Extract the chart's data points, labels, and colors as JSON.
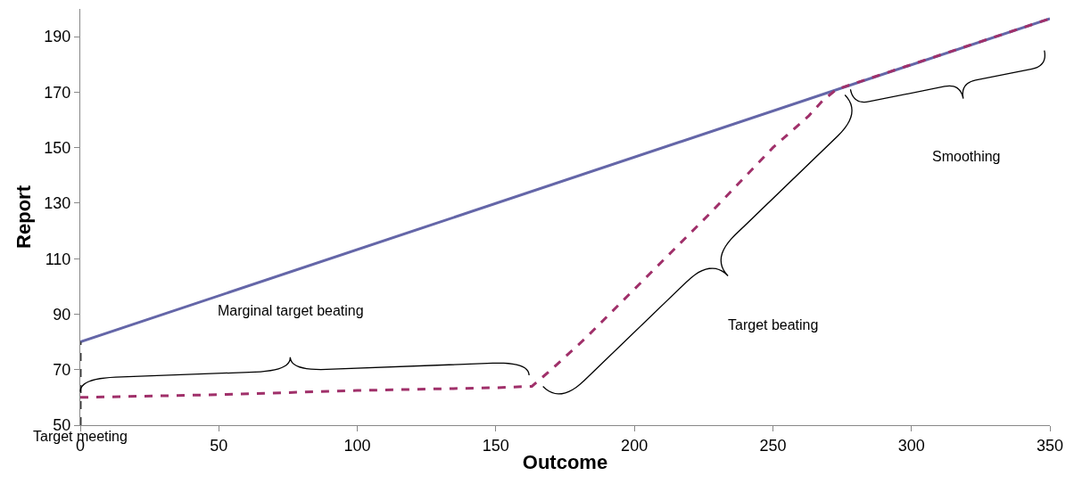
{
  "chart_data": {
    "type": "line",
    "xlabel": "Outcome",
    "ylabel": "Report",
    "xlim": [
      0,
      350
    ],
    "xticks": [
      0,
      50,
      100,
      150,
      200,
      250,
      300,
      350
    ],
    "ylim": [
      50,
      200
    ],
    "yticks": [
      50,
      70,
      90,
      110,
      130,
      150,
      170,
      190
    ],
    "grid": false,
    "marker": "none",
    "series": [
      {
        "color": "#6466a8",
        "line_style": "solid",
        "x": [
          0,
          350
        ],
        "values": [
          80,
          196.5
        ]
      },
      {
        "color": "#a0306a",
        "line_style": "dashed",
        "x": [
          0,
          50,
          100,
          150,
          163,
          170,
          182,
          204,
          227,
          250,
          263,
          268,
          273,
          350
        ],
        "values": [
          60,
          61,
          62.5,
          63.5,
          64,
          70,
          81,
          103,
          126,
          150,
          161.5,
          167,
          171,
          196.5
        ]
      },
      {
        "color": "#404040",
        "line_style": "dashed",
        "x": [
          0,
          0
        ],
        "values": [
          50,
          80
        ]
      }
    ],
    "annotations": [
      "Marginal target beating",
      "Target beating",
      "Smoothing",
      "Target meeting"
    ]
  }
}
